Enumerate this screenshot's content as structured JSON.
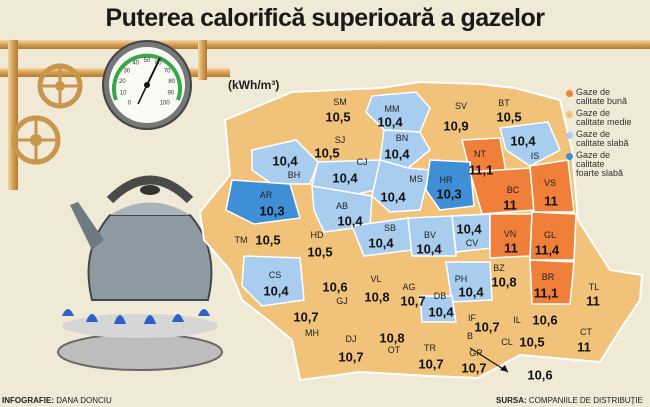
{
  "title": "Puterea calorifică superioară a gazelor",
  "unit": "(kWh/m³)",
  "colors": {
    "good": "#f07f3a",
    "medium": "#f1c27a",
    "weak": "#a9cdee",
    "very_weak": "#3f8fd7"
  },
  "legend": [
    {
      "label_lines": [
        "Gaze de",
        "calitate bună"
      ],
      "color": "#f07f3a"
    },
    {
      "label_lines": [
        "Gaze de",
        "calitate medie"
      ],
      "color": "#f1c27a"
    },
    {
      "label_lines": [
        "Gaze de",
        "calitate slabă"
      ],
      "color": "#a9cdee"
    },
    {
      "label_lines": [
        "Gaze de",
        "calitate",
        "foarte slabă"
      ],
      "color": "#3f8fd7"
    }
  ],
  "counties": [
    {
      "code": "SM",
      "value": "10,5",
      "quality": "medium"
    },
    {
      "code": "MM",
      "value": "10,4",
      "quality": "weak"
    },
    {
      "code": "SV",
      "value": "10,9",
      "quality": "medium"
    },
    {
      "code": "BT",
      "value": "10,5",
      "quality": "medium"
    },
    {
      "code": "SJ",
      "value": "10,5",
      "quality": "medium"
    },
    {
      "code": "BN",
      "value": "10,4",
      "quality": "weak"
    },
    {
      "code": "IS",
      "value": "10,4",
      "quality": "weak"
    },
    {
      "code": "BH",
      "value": "10,4",
      "quality": "weak"
    },
    {
      "code": "CJ",
      "value": "10,4",
      "quality": "weak"
    },
    {
      "code": "NT",
      "value": "11,1",
      "quality": "good"
    },
    {
      "code": "MS",
      "value": "10,4",
      "quality": "weak"
    },
    {
      "code": "HR",
      "value": "10,3",
      "quality": "very_weak"
    },
    {
      "code": "BC",
      "value": "11",
      "quality": "good"
    },
    {
      "code": "VS",
      "value": "11",
      "quality": "good"
    },
    {
      "code": "AR",
      "value": "10,3",
      "quality": "very_weak"
    },
    {
      "code": "AB",
      "value": "10,4",
      "quality": "weak"
    },
    {
      "code": "SB",
      "value": "10,4",
      "quality": "weak"
    },
    {
      "code": "BV",
      "value": "10,4",
      "quality": "weak"
    },
    {
      "code": "CV",
      "value": "10,4",
      "quality": "weak"
    },
    {
      "code": "VN",
      "value": "11",
      "quality": "good"
    },
    {
      "code": "GL",
      "value": "11,4",
      "quality": "good"
    },
    {
      "code": "TM",
      "value": "10,5",
      "quality": "medium"
    },
    {
      "code": "HD",
      "value": "10,5",
      "quality": "medium"
    },
    {
      "code": "BZ",
      "value": "10,8",
      "quality": "medium"
    },
    {
      "code": "BR",
      "value": "11,1",
      "quality": "good"
    },
    {
      "code": "TL",
      "value": "11",
      "quality": "good"
    },
    {
      "code": "CS",
      "value": "10,4",
      "quality": "weak"
    },
    {
      "code": "VL",
      "value": "10,8",
      "quality": "medium"
    },
    {
      "code": "AG",
      "value": "10,7",
      "quality": "medium"
    },
    {
      "code": "PH",
      "value": "10,4",
      "quality": "weak"
    },
    {
      "code": "DB",
      "value": "10,4",
      "quality": "weak"
    },
    {
      "code": "GJ",
      "value": "10,6",
      "quality": "medium"
    },
    {
      "code": "MH",
      "value": "10,7",
      "quality": "medium"
    },
    {
      "code": "IF",
      "value": "10,7",
      "quality": "medium"
    },
    {
      "code": "IL",
      "value": "10,6",
      "quality": "medium"
    },
    {
      "code": "CT",
      "value": "11",
      "quality": "good"
    },
    {
      "code": "DJ",
      "value": "10,7",
      "quality": "medium"
    },
    {
      "code": "OT",
      "value": "10,8",
      "quality": "medium"
    },
    {
      "code": "TR",
      "value": "10,7",
      "quality": "medium"
    },
    {
      "code": "GR",
      "value": "10,7",
      "quality": "medium"
    },
    {
      "code": "CL",
      "value": "10,5",
      "quality": "medium"
    },
    {
      "code": "B",
      "value": "10,6",
      "quality": "medium"
    }
  ],
  "gauge_ticks": [
    "0",
    "10",
    "20",
    "30",
    "40",
    "50",
    "60",
    "70",
    "80",
    "90",
    "100"
  ],
  "credits": {
    "left_label": "INFOGRAFIE:",
    "left_name": "DANA DONCIU",
    "right_label": "SURSA:",
    "right_name": "COMPANIILE DE DISTRIBUȚIE"
  }
}
